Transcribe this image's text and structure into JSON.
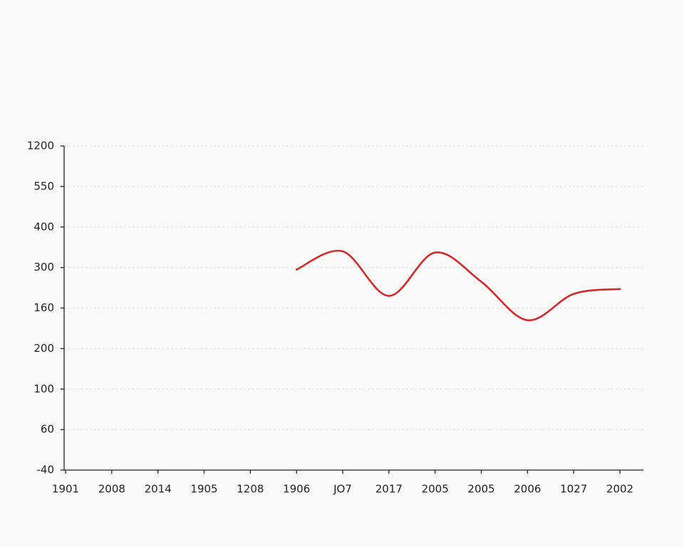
{
  "chart_data": {
    "type": "line",
    "categories": [
      "1901",
      "2008",
      "2014",
      "1905",
      "1208",
      "1906",
      "JO7",
      "2017",
      "2005",
      "2005",
      "2006",
      "1027",
      "2002"
    ],
    "series": [
      {
        "color": "#d42a2a",
        "values": [
          null,
          null,
          null,
          null,
          null,
          4.95,
          5.4,
          4.3,
          5.37,
          4.65,
          3.7,
          4.35,
          4.47
        ]
      }
    ],
    "ylim": [
      0,
      8
    ],
    "yticks": [
      {
        "value": 0,
        "label": "-40"
      },
      {
        "value": 1,
        "label": "60"
      },
      {
        "value": 2,
        "label": "100"
      },
      {
        "value": 3,
        "label": "200"
      },
      {
        "value": 4,
        "label": "160"
      },
      {
        "value": 5,
        "label": "300"
      },
      {
        "value": 6,
        "label": "400"
      },
      {
        "value": 7,
        "label": "550"
      },
      {
        "value": 8,
        "label": "1200"
      }
    ],
    "grid": true
  }
}
